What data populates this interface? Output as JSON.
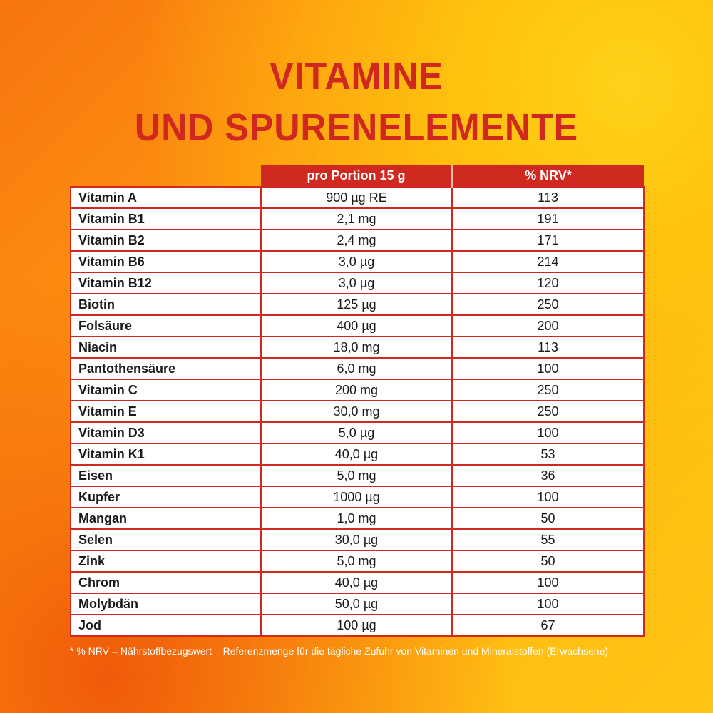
{
  "title": {
    "line1": "VITAMINE",
    "line2": "UND SPURENELEMENTE"
  },
  "table": {
    "headers": {
      "portion": "pro Portion 15 g",
      "nrv": "% NRV*"
    },
    "rows": [
      {
        "name": "Vitamin A",
        "value": "900 µg RE",
        "nrv": "113"
      },
      {
        "name": "Vitamin B1",
        "value": "2,1 mg",
        "nrv": "191"
      },
      {
        "name": "Vitamin B2",
        "value": "2,4 mg",
        "nrv": "171"
      },
      {
        "name": "Vitamin B6",
        "value": "3,0 µg",
        "nrv": "214"
      },
      {
        "name": "Vitamin B12",
        "value": "3,0 µg",
        "nrv": "120"
      },
      {
        "name": "Biotin",
        "value": "125 µg",
        "nrv": "250"
      },
      {
        "name": "Folsäure",
        "value": "400 µg",
        "nrv": "200"
      },
      {
        "name": "Niacin",
        "value": "18,0 mg",
        "nrv": "113"
      },
      {
        "name": "Pantothensäure",
        "value": "6,0 mg",
        "nrv": "100"
      },
      {
        "name": "Vitamin C",
        "value": "200 mg",
        "nrv": "250"
      },
      {
        "name": "Vitamin E",
        "value": "30,0 mg",
        "nrv": "250"
      },
      {
        "name": "Vitamin D3",
        "value": "5,0 µg",
        "nrv": "100"
      },
      {
        "name": "Vitamin K1",
        "value": "40,0 µg",
        "nrv": "53"
      },
      {
        "name": "Eisen",
        "value": "5,0 mg",
        "nrv": "36"
      },
      {
        "name": "Kupfer",
        "value": "1000 µg",
        "nrv": "100"
      },
      {
        "name": "Mangan",
        "value": "1,0 mg",
        "nrv": "50"
      },
      {
        "name": "Selen",
        "value": "30,0 µg",
        "nrv": "55"
      },
      {
        "name": "Zink",
        "value": "5,0 mg",
        "nrv": "50"
      },
      {
        "name": "Chrom",
        "value": "40,0 µg",
        "nrv": "100"
      },
      {
        "name": "Molybdän",
        "value": "50,0 µg",
        "nrv": "100"
      },
      {
        "name": "Jod",
        "value": "100 µg",
        "nrv": "67"
      }
    ]
  },
  "footnote": "* % NRV = Nährstoffbezugswert – Referenzmenge für die tägliche Zufuhr von Vitaminen und Mineralstoffen (Erwachsene)",
  "colors": {
    "accent_red": "#d0291f",
    "background_orange": "#ff9d10",
    "background_yellow": "#ffc514"
  }
}
